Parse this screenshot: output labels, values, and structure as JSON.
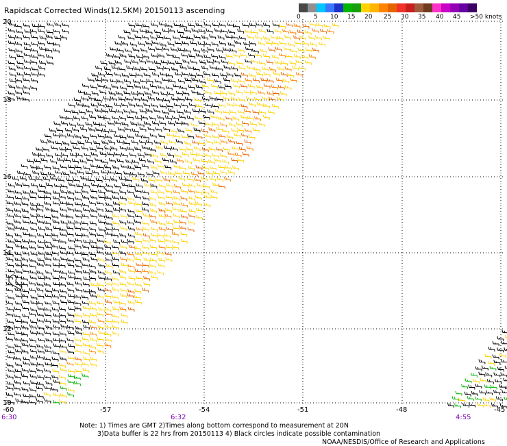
{
  "title": "Rapidscat Corrected Winds(12.5KM) 20150113 ascending",
  "legend": {
    "labels": [
      "0",
      "5",
      "10",
      "15",
      "20",
      "25",
      "30",
      "35",
      "40",
      "45",
      ">50 knots"
    ],
    "colors": [
      "#484848",
      "#909090",
      "#00c8ff",
      "#3c78ff",
      "#1e32c8",
      "#00b400",
      "#14a00a",
      "#ffd200",
      "#ffb400",
      "#ff8200",
      "#e66400",
      "#f03228",
      "#c81e1e",
      "#a05a3c",
      "#6e3c1e",
      "#ff32c8",
      "#c800c8",
      "#9600b4",
      "#6400a0",
      "#3c0064"
    ]
  },
  "map": {
    "lon_ticks": [
      "-60",
      "-57",
      "-54",
      "-51",
      "-48",
      "-45"
    ],
    "lat_ticks": [
      "20",
      "18",
      "16",
      "14",
      "12",
      "10"
    ],
    "pass_times": [
      "6:30",
      "6:32",
      "4:55"
    ]
  },
  "notes": {
    "line1": "Note: 1) Times are GMT 2)Times along bottom correspond to measurement at 20N",
    "line2": "3)Data buffer is 22 hrs from 20150113 4) Black circles indicate possible contamination",
    "line3": "NOAA/NESDIS/Office of Research and Applications"
  }
}
